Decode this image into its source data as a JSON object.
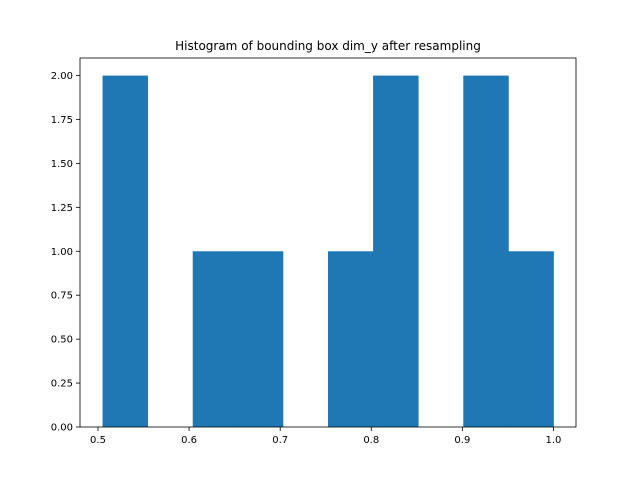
{
  "chart_data": {
    "type": "bar",
    "title": "Histogram of bounding box dim_y after resampling",
    "xlabel": "",
    "ylabel": "",
    "bin_edges": [
      0.505,
      0.5545,
      0.604,
      0.6535,
      0.703,
      0.7525,
      0.802,
      0.8515,
      0.901,
      0.9505,
      1.0
    ],
    "values": [
      2,
      0,
      1,
      1,
      0,
      1,
      2,
      0,
      2,
      1
    ],
    "xlim": [
      0.48025,
      1.02475
    ],
    "ylim": [
      0,
      2.1
    ],
    "x_ticks": [
      0.5,
      0.6,
      0.7,
      0.8,
      0.9,
      1.0
    ],
    "x_tick_labels": [
      "0.5",
      "0.6",
      "0.7",
      "0.8",
      "0.9",
      "1.0"
    ],
    "y_ticks": [
      0,
      0.25,
      0.5,
      0.75,
      1.0,
      1.25,
      1.5,
      1.75,
      2.0
    ],
    "y_tick_labels": [
      "0.00",
      "0.25",
      "0.50",
      "0.75",
      "1.00",
      "1.25",
      "1.50",
      "1.75",
      "2.00"
    ],
    "bar_color": "#1f77b4",
    "grid": false,
    "legend": "none"
  }
}
